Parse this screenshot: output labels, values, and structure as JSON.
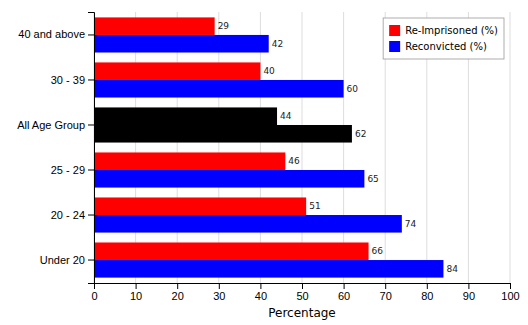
{
  "chart_data": {
    "type": "bar",
    "orientation": "horizontal",
    "categories": [
      "Under 20",
      "20 - 24",
      "25 - 29",
      "All Age Group",
      "30 - 39",
      "40 and above"
    ],
    "series": [
      {
        "name": "Re-Imprisoned (%)",
        "color": "#ff0000",
        "colors": [
          "#ff0000",
          "#ff0000",
          "#ff0000",
          "#000000",
          "#ff0000",
          "#ff0000"
        ],
        "values": [
          66,
          51,
          46,
          44,
          40,
          29
        ]
      },
      {
        "name": "Reconvicted (%)",
        "color": "#0000ff",
        "colors": [
          "#0000ff",
          "#0000ff",
          "#0000ff",
          "#000000",
          "#0000ff",
          "#0000ff"
        ],
        "values": [
          84,
          74,
          65,
          62,
          60,
          42
        ]
      }
    ],
    "xlabel": "Percentage",
    "xlim": [
      0,
      100
    ],
    "xticks": [
      0,
      10,
      20,
      30,
      40,
      50,
      60,
      70,
      80,
      90,
      100
    ],
    "grid": true,
    "legend": "upper right",
    "data_labels": true
  }
}
